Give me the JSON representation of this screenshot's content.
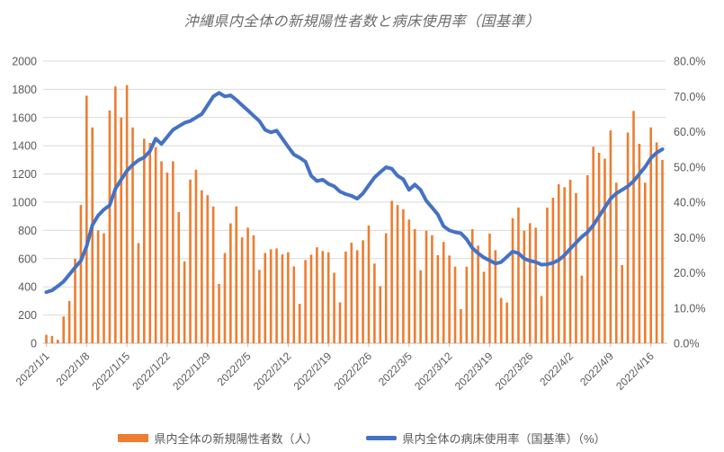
{
  "title": "沖縄県内全体の新規陽性者数と病床使用率（国基準）",
  "legend": {
    "bars_label": "県内全体の新規陽性者数（人）",
    "line_label": "県内全体の病床使用率（国基準）（%）"
  },
  "colors": {
    "bars": "#ED7D31",
    "line": "#4472C4",
    "text": "#595959",
    "title_text": "#6B6B6B",
    "gridline": "#D9D9D9",
    "axis": "#BFBFBF",
    "background": "#FFFFFF"
  },
  "chart_data": {
    "type": "combo-bar-line",
    "grid": "horizontal",
    "legend_position": "bottom",
    "y_left": {
      "min": 0,
      "max": 2000,
      "step": 200
    },
    "y_right": {
      "min": 0,
      "max": 80,
      "step": 10,
      "unit": "%",
      "decimals": 1
    },
    "x_tick_labels": [
      "2022/1/1",
      "2022/1/8",
      "2022/1/15",
      "2022/1/22",
      "2022/1/29",
      "2022/2/5",
      "2022/2/12",
      "2022/2/19",
      "2022/2/26",
      "2022/3/5",
      "2022/3/12",
      "2022/3/19",
      "2022/3/26",
      "2022/4/2",
      "2022/4/9",
      "2022/4/16"
    ],
    "x": [
      "2022/1/1",
      "2022/1/2",
      "2022/1/3",
      "2022/1/4",
      "2022/1/5",
      "2022/1/6",
      "2022/1/7",
      "2022/1/8",
      "2022/1/9",
      "2022/1/10",
      "2022/1/11",
      "2022/1/12",
      "2022/1/13",
      "2022/1/14",
      "2022/1/15",
      "2022/1/16",
      "2022/1/17",
      "2022/1/18",
      "2022/1/19",
      "2022/1/20",
      "2022/1/21",
      "2022/1/22",
      "2022/1/23",
      "2022/1/24",
      "2022/1/25",
      "2022/1/26",
      "2022/1/27",
      "2022/1/28",
      "2022/1/29",
      "2022/1/30",
      "2022/1/31",
      "2022/2/1",
      "2022/2/2",
      "2022/2/3",
      "2022/2/4",
      "2022/2/5",
      "2022/2/6",
      "2022/2/7",
      "2022/2/8",
      "2022/2/9",
      "2022/2/10",
      "2022/2/11",
      "2022/2/12",
      "2022/2/13",
      "2022/2/14",
      "2022/2/15",
      "2022/2/16",
      "2022/2/17",
      "2022/2/18",
      "2022/2/19",
      "2022/2/20",
      "2022/2/21",
      "2022/2/22",
      "2022/2/23",
      "2022/2/24",
      "2022/2/25",
      "2022/2/26",
      "2022/2/27",
      "2022/2/28",
      "2022/3/1",
      "2022/3/2",
      "2022/3/3",
      "2022/3/4",
      "2022/3/5",
      "2022/3/6",
      "2022/3/7",
      "2022/3/8",
      "2022/3/9",
      "2022/3/10",
      "2022/3/11",
      "2022/3/12",
      "2022/3/13",
      "2022/3/14",
      "2022/3/15",
      "2022/3/16",
      "2022/3/17",
      "2022/3/18",
      "2022/3/19",
      "2022/3/20",
      "2022/3/21",
      "2022/3/22",
      "2022/3/23",
      "2022/3/24",
      "2022/3/25",
      "2022/3/26",
      "2022/3/27",
      "2022/3/28",
      "2022/3/29",
      "2022/3/30",
      "2022/3/31",
      "2022/4/1",
      "2022/4/2",
      "2022/4/3",
      "2022/4/4",
      "2022/4/5",
      "2022/4/6",
      "2022/4/7",
      "2022/4/8",
      "2022/4/9",
      "2022/4/10",
      "2022/4/11",
      "2022/4/12",
      "2022/4/13",
      "2022/4/14",
      "2022/4/15",
      "2022/4/16",
      "2022/4/17",
      "2022/4/18"
    ],
    "series": [
      {
        "name": "県内全体の新規陽性者数（人）",
        "type": "bar",
        "axis": "left",
        "color": "#ED7D31",
        "values": [
          60,
          52,
          25,
          190,
          300,
          600,
          980,
          1755,
          1530,
          800,
          780,
          1650,
          1820,
          1600,
          1830,
          1530,
          710,
          1450,
          1420,
          1390,
          1290,
          1210,
          1290,
          930,
          580,
          1160,
          1230,
          1085,
          1050,
          970,
          420,
          640,
          850,
          970,
          750,
          820,
          765,
          520,
          640,
          666,
          672,
          630,
          645,
          545,
          280,
          590,
          628,
          680,
          654,
          645,
          500,
          290,
          650,
          713,
          660,
          730,
          834,
          565,
          405,
          780,
          1010,
          980,
          950,
          877,
          810,
          518,
          798,
          766,
          624,
          718,
          622,
          543,
          242,
          543,
          809,
          692,
          507,
          777,
          660,
          321,
          289,
          887,
          962,
          798,
          851,
          819,
          335,
          962,
          1032,
          1127,
          1106,
          1159,
          1064,
          480,
          1191,
          1393,
          1350,
          1308,
          1509,
          1138,
          554,
          1494,
          1647,
          1414,
          1138,
          1530,
          1424,
          1300
        ]
      },
      {
        "name": "県内全体の病床使用率（国基準）（%）",
        "type": "line",
        "axis": "right",
        "color": "#4472C4",
        "values_percent": [
          14.5,
          15.0,
          16.2,
          17.5,
          19.5,
          21.5,
          23.4,
          27.5,
          33.5,
          36.2,
          37.9,
          39.1,
          43.8,
          46.4,
          48.9,
          50.6,
          51.9,
          52.7,
          54.5,
          58.0,
          56.5,
          58.5,
          60.5,
          61.5,
          62.5,
          63.0,
          64.0,
          65.0,
          67.5,
          70.0,
          71.0,
          70.0,
          70.3,
          69.0,
          67.5,
          66.0,
          64.5,
          63.0,
          60.5,
          59.8,
          60.3,
          58.0,
          55.7,
          53.5,
          52.6,
          51.5,
          47.5,
          46.0,
          46.4,
          45.2,
          44.5,
          43.0,
          42.3,
          41.8,
          41.0,
          42.5,
          44.8,
          47.0,
          48.5,
          49.9,
          49.5,
          47.5,
          46.5,
          43.5,
          45.0,
          43.5,
          40.4,
          38.5,
          36.5,
          33.2,
          32.0,
          31.5,
          31.2,
          29.5,
          27.0,
          25.5,
          24.3,
          23.5,
          22.6,
          23.0,
          24.5,
          26.0,
          25.5,
          24.0,
          23.4,
          23.0,
          22.3,
          22.4,
          22.8,
          23.6,
          25.0,
          26.8,
          28.5,
          30.2,
          31.5,
          33.5,
          36.0,
          38.5,
          41.0,
          42.5,
          43.5,
          44.5,
          46.0,
          48.0,
          50.0,
          52.5,
          54.0,
          55.0
        ]
      }
    ]
  }
}
